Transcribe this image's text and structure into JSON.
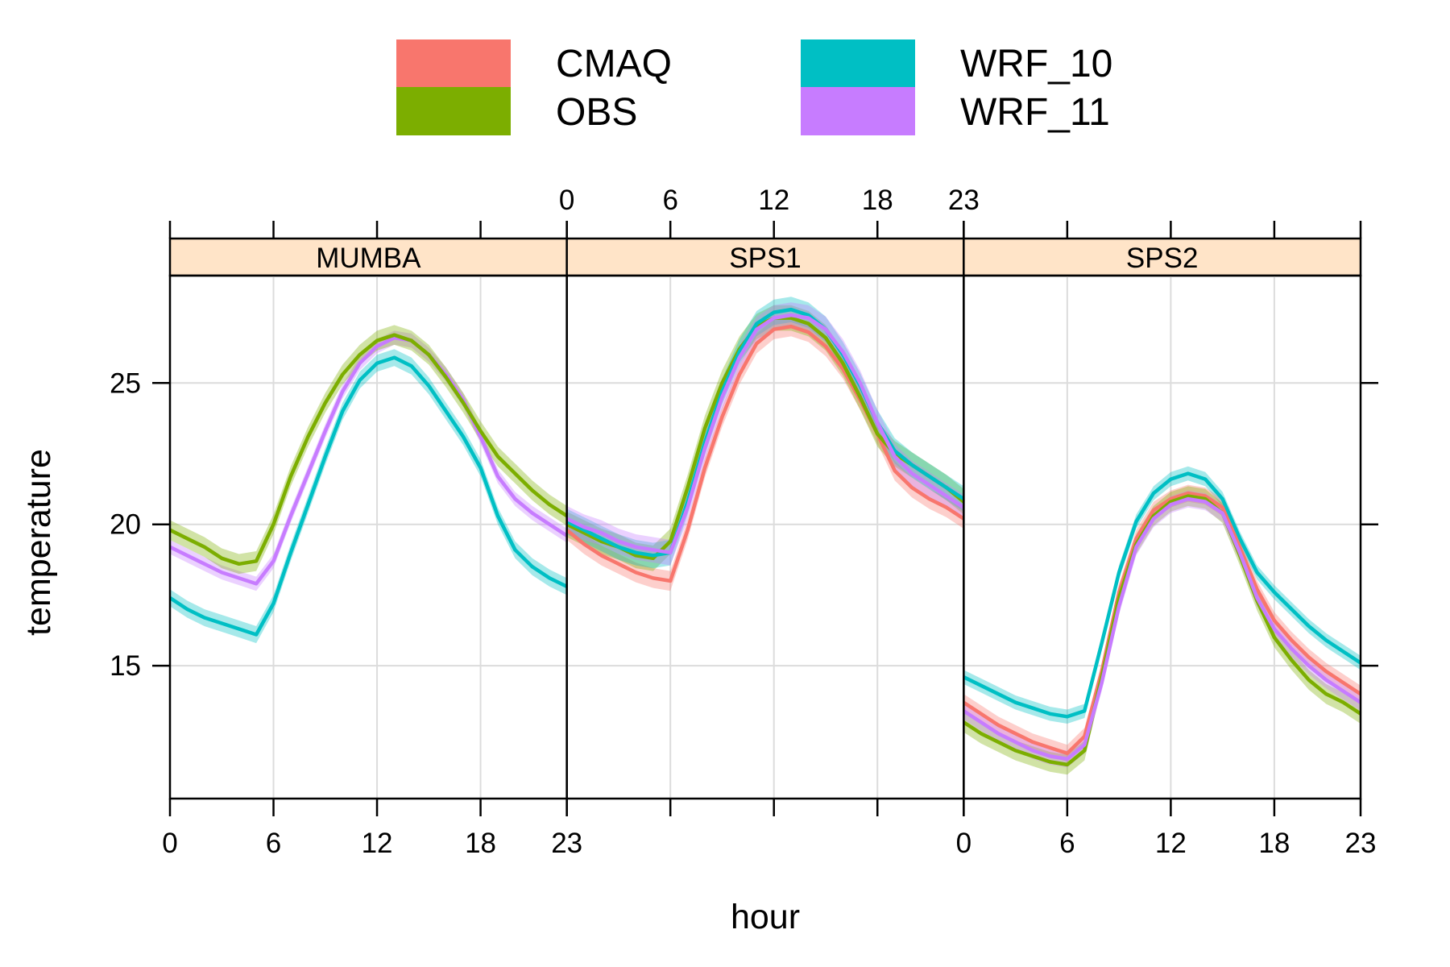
{
  "chart_data": {
    "type": "line",
    "xlabel": "hour",
    "ylabel": "temperature",
    "xlim": [
      0,
      23
    ],
    "ylim": [
      10.3,
      28.8
    ],
    "x_ticks": [
      0,
      6,
      12,
      18,
      23
    ],
    "y_ticks": [
      15,
      20,
      25
    ],
    "grid": true,
    "legend_position": "top",
    "strip_color": "#ffe4c8",
    "legend": [
      {
        "name": "CMAQ",
        "color": "#f8766d"
      },
      {
        "name": "OBS",
        "color": "#7cae00"
      },
      {
        "name": "WRF_10",
        "color": "#00bfc4"
      },
      {
        "name": "WRF_11",
        "color": "#c77cff"
      }
    ],
    "panels": [
      {
        "title": "MUMBA",
        "series": [
          {
            "name": "WRF_10",
            "color": "#00bfc4",
            "x": [
              0,
              1,
              2,
              3,
              4,
              5,
              6,
              7,
              8,
              9,
              10,
              11,
              12,
              13,
              14,
              15,
              16,
              17,
              18,
              19,
              20,
              21,
              22,
              23
            ],
            "y": [
              17.4,
              17.0,
              16.7,
              16.5,
              16.3,
              16.1,
              17.2,
              19.0,
              20.7,
              22.4,
              24.0,
              25.1,
              25.7,
              25.9,
              25.6,
              24.9,
              24.0,
              23.1,
              22.0,
              20.3,
              19.1,
              18.5,
              18.1,
              17.8
            ],
            "band": 0.3
          },
          {
            "name": "WRF_11",
            "color": "#c77cff",
            "x": [
              0,
              1,
              2,
              3,
              4,
              5,
              6,
              7,
              8,
              9,
              10,
              11,
              12,
              13,
              14,
              15,
              16,
              17,
              18,
              19,
              20,
              21,
              22,
              23
            ],
            "y": [
              19.2,
              18.9,
              18.6,
              18.3,
              18.1,
              17.9,
              18.7,
              20.3,
              21.8,
              23.3,
              24.7,
              25.7,
              26.3,
              26.6,
              26.5,
              26.0,
              25.3,
              24.4,
              23.1,
              21.7,
              20.9,
              20.4,
              20.0,
              19.6
            ],
            "band": 0.25
          },
          {
            "name": "OBS",
            "color": "#7cae00",
            "x": [
              0,
              1,
              2,
              3,
              4,
              5,
              6,
              7,
              8,
              9,
              10,
              11,
              12,
              13,
              14,
              15,
              16,
              17,
              18,
              19,
              20,
              21,
              22,
              23
            ],
            "y": [
              19.8,
              19.5,
              19.2,
              18.8,
              18.6,
              18.7,
              20.0,
              21.7,
              23.1,
              24.3,
              25.3,
              26.0,
              26.5,
              26.7,
              26.5,
              26.0,
              25.2,
              24.3,
              23.3,
              22.4,
              21.8,
              21.2,
              20.7,
              20.3
            ],
            "band": 0.35
          }
        ]
      },
      {
        "title": "SPS1",
        "series": [
          {
            "name": "CMAQ",
            "color": "#f8766d",
            "x": [
              0,
              1,
              2,
              3,
              4,
              5,
              6,
              7,
              8,
              9,
              10,
              11,
              12,
              13,
              14,
              15,
              16,
              17,
              18,
              19,
              20,
              21,
              22,
              23
            ],
            "y": [
              19.8,
              19.3,
              18.9,
              18.6,
              18.3,
              18.1,
              18.0,
              19.8,
              22.0,
              23.8,
              25.3,
              26.4,
              26.9,
              27.0,
              26.8,
              26.3,
              25.5,
              24.4,
              23.2,
              21.9,
              21.3,
              20.9,
              20.6,
              20.2
            ],
            "band": 0.35
          },
          {
            "name": "OBS",
            "color": "#7cae00",
            "x": [
              0,
              1,
              2,
              3,
              4,
              5,
              6,
              7,
              8,
              9,
              10,
              11,
              12,
              13,
              14,
              15,
              16,
              17,
              18,
              19,
              20,
              21,
              22,
              23
            ],
            "y": [
              20.0,
              19.7,
              19.4,
              19.2,
              18.9,
              18.8,
              19.4,
              21.3,
              23.4,
              25.0,
              26.2,
              27.0,
              27.3,
              27.3,
              27.1,
              26.6,
              25.7,
              24.5,
              23.2,
              22.5,
              22.1,
              21.7,
              21.3,
              20.8
            ],
            "band": 0.45
          },
          {
            "name": "WRF_10",
            "color": "#00bfc4",
            "x": [
              0,
              1,
              2,
              3,
              4,
              5,
              6,
              7,
              8,
              9,
              10,
              11,
              12,
              13,
              14,
              15,
              16,
              17,
              18,
              19,
              20,
              21,
              22,
              23
            ],
            "y": [
              20.1,
              19.8,
              19.5,
              19.2,
              19.0,
              18.9,
              19.0,
              20.8,
              22.9,
              24.7,
              26.1,
              27.1,
              27.5,
              27.6,
              27.4,
              26.9,
              26.0,
              24.9,
              23.6,
              22.6,
              22.1,
              21.7,
              21.3,
              20.9
            ],
            "band": 0.45
          },
          {
            "name": "WRF_11",
            "color": "#c77cff",
            "x": [
              0,
              1,
              2,
              3,
              4,
              5,
              6,
              7,
              8,
              9,
              10,
              11,
              12,
              13,
              14,
              15,
              16,
              17,
              18,
              19,
              20,
              21,
              22,
              23
            ],
            "y": [
              20.2,
              19.9,
              19.7,
              19.4,
              19.2,
              19.1,
              19.0,
              20.6,
              22.7,
              24.5,
              25.9,
              26.9,
              27.3,
              27.4,
              27.3,
              26.9,
              26.1,
              25.0,
              23.6,
              22.4,
              21.8,
              21.4,
              21.0,
              20.6
            ],
            "band": 0.45
          }
        ]
      },
      {
        "title": "SPS2",
        "series": [
          {
            "name": "WRF_10",
            "color": "#00bfc4",
            "x": [
              0,
              1,
              2,
              3,
              4,
              5,
              6,
              7,
              8,
              9,
              10,
              11,
              12,
              13,
              14,
              15,
              16,
              17,
              18,
              19,
              20,
              21,
              22,
              23
            ],
            "y": [
              14.6,
              14.3,
              14.0,
              13.7,
              13.5,
              13.3,
              13.2,
              13.4,
              15.8,
              18.3,
              20.1,
              21.1,
              21.6,
              21.8,
              21.6,
              20.9,
              19.5,
              18.3,
              17.6,
              17.0,
              16.4,
              15.9,
              15.5,
              15.1
            ],
            "band": 0.25
          },
          {
            "name": "CMAQ",
            "color": "#f8766d",
            "x": [
              0,
              1,
              2,
              3,
              4,
              5,
              6,
              7,
              8,
              9,
              10,
              11,
              12,
              13,
              14,
              15,
              16,
              17,
              18,
              19,
              20,
              21,
              22,
              23
            ],
            "y": [
              13.7,
              13.3,
              12.9,
              12.6,
              12.3,
              12.1,
              11.9,
              12.5,
              14.8,
              17.6,
              19.5,
              20.5,
              20.9,
              21.1,
              21.0,
              20.6,
              19.2,
              17.7,
              16.6,
              15.9,
              15.3,
              14.8,
              14.4,
              14.0
            ],
            "band": 0.3
          },
          {
            "name": "OBS",
            "color": "#7cae00",
            "x": [
              0,
              1,
              2,
              3,
              4,
              5,
              6,
              7,
              8,
              9,
              10,
              11,
              12,
              13,
              14,
              15,
              16,
              17,
              18,
              19,
              20,
              21,
              22,
              23
            ],
            "y": [
              13.0,
              12.6,
              12.3,
              12.0,
              11.8,
              11.6,
              11.5,
              12.0,
              14.6,
              17.4,
              19.3,
              20.3,
              20.8,
              21.0,
              20.9,
              20.4,
              18.9,
              17.3,
              16.0,
              15.2,
              14.5,
              14.0,
              13.7,
              13.3
            ],
            "band": 0.35
          },
          {
            "name": "WRF_11",
            "color": "#c77cff",
            "x": [
              0,
              1,
              2,
              3,
              4,
              5,
              6,
              7,
              8,
              9,
              10,
              11,
              12,
              13,
              14,
              15,
              16,
              17,
              18,
              19,
              20,
              21,
              22,
              23
            ],
            "y": [
              13.4,
              13.0,
              12.6,
              12.3,
              12.0,
              11.8,
              11.7,
              12.2,
              14.4,
              17.1,
              19.2,
              20.2,
              20.7,
              20.9,
              20.8,
              20.4,
              19.0,
              17.4,
              16.3,
              15.6,
              15.0,
              14.5,
              14.1,
              13.7
            ],
            "band": 0.3
          }
        ]
      }
    ]
  }
}
